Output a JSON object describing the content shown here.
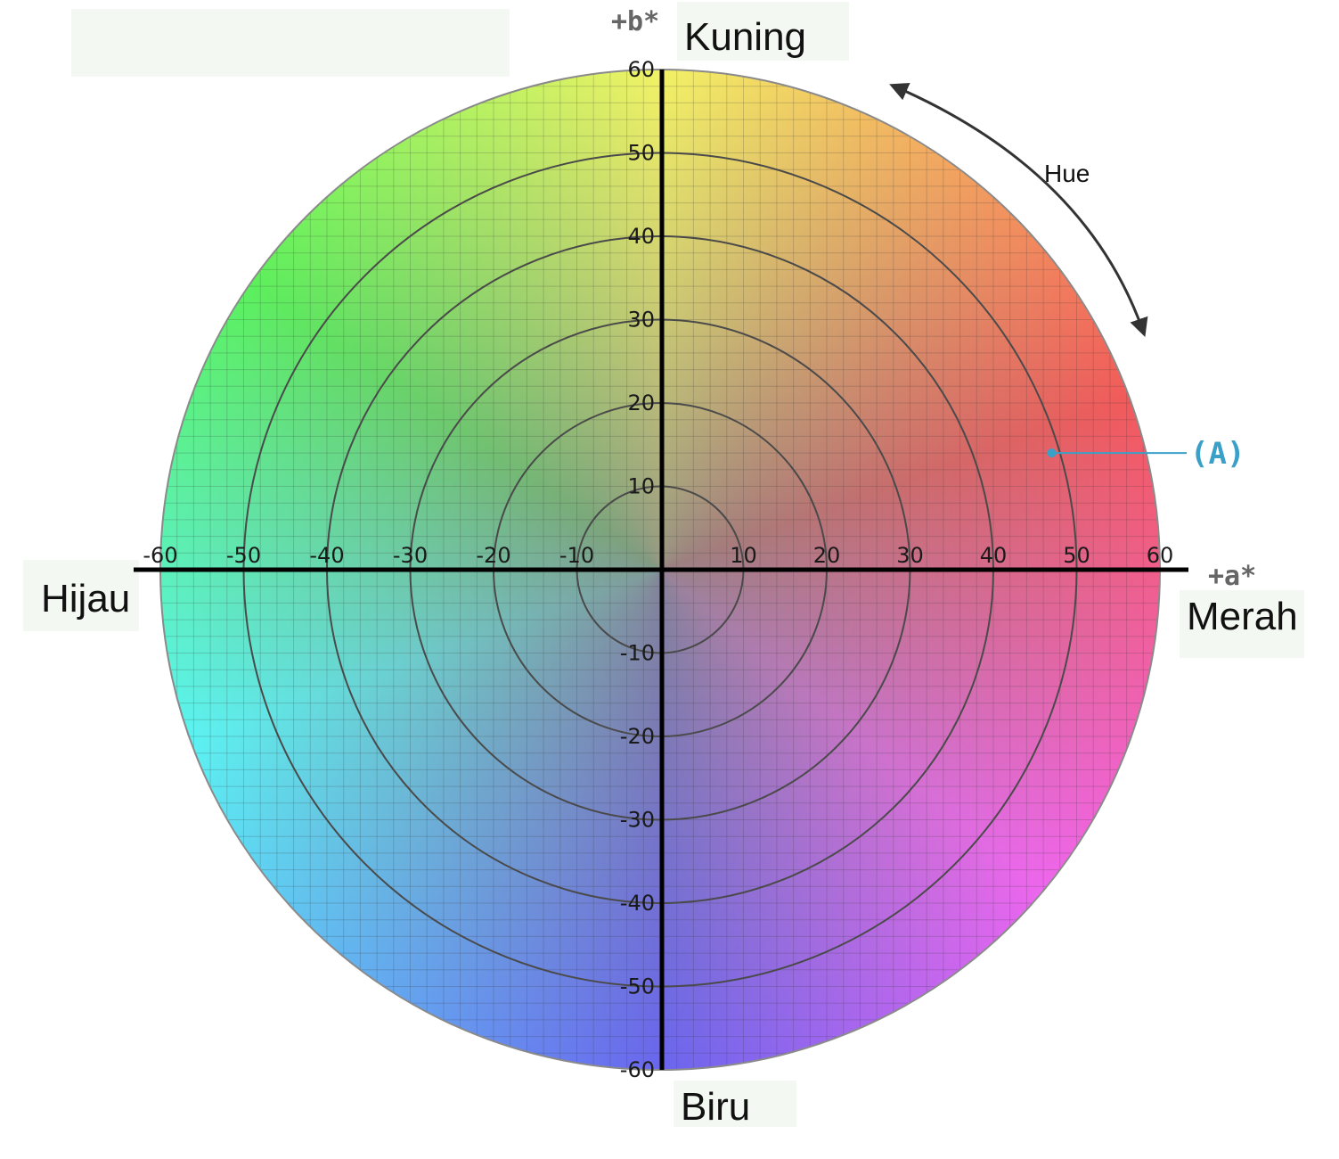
{
  "chart_data": {
    "type": "scatter",
    "title": "",
    "xlabel": "+a*",
    "ylabel": "+b*",
    "xlim": [
      -60,
      60
    ],
    "ylim": [
      -60,
      60
    ],
    "x_ticks": [
      -60,
      -50,
      -40,
      -30,
      -20,
      -10,
      10,
      20,
      30,
      40,
      50,
      60
    ],
    "y_ticks": [
      60,
      50,
      40,
      30,
      20,
      10,
      -10,
      -20,
      -30,
      -40,
      -50,
      -60
    ],
    "chroma_rings": [
      10,
      20,
      30,
      40,
      50
    ],
    "grid": true,
    "points": [
      {
        "label": "(A)",
        "x": 47,
        "y": 14
      }
    ],
    "direction_labels": {
      "top": "Kuning",
      "bottom": "Biru",
      "left": "Hijau",
      "right": "Merah"
    },
    "hue_label": "Hue"
  },
  "colors": {
    "yellow": "#f2f266",
    "red": "#f25a5a",
    "magenta": "#ee66ee",
    "blue": "#6a66ee",
    "cyan": "#5cf2f2",
    "green": "#5cf05c",
    "center_gray": "#8a8a8a",
    "point_label": "#3aa0c8",
    "axis": "#000000"
  }
}
